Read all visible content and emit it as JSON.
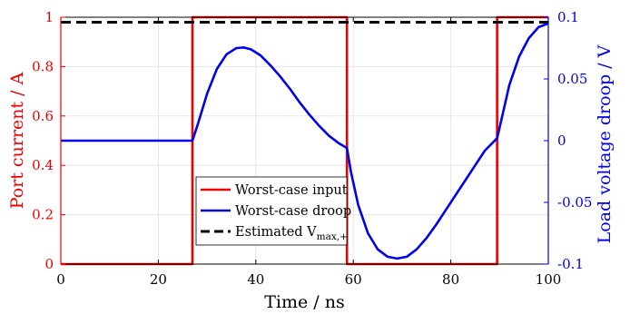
{
  "chart_data": {
    "type": "line",
    "xlabel": "Time / ns",
    "ylabel_left": "Port current / A",
    "ylabel_right": "Load voltage droop / V",
    "xlim": [
      0,
      100
    ],
    "ylim_left": [
      0,
      1
    ],
    "ylim_right": [
      -0.1,
      0.1
    ],
    "x_ticks": [
      0,
      20,
      40,
      60,
      80,
      100
    ],
    "y_left_ticks": [
      0,
      0.2,
      0.4,
      0.6,
      0.8,
      1
    ],
    "y_left_tick_labels": [
      "0",
      "0.2",
      "0.4",
      "0.6",
      "0.8",
      "1"
    ],
    "y_right_ticks": [
      -0.1,
      -0.05,
      0,
      0.05,
      0.1
    ],
    "y_right_tick_labels": [
      "-0.1",
      "-0.05",
      "0",
      "0.05",
      "0.1"
    ],
    "grid": true,
    "legend_position": "bottom-center",
    "colors": {
      "left_axis": "#ee0000",
      "right_axis": "#0000ee"
    },
    "series": [
      {
        "name": "Worst-case input",
        "axis": "left",
        "color": "#ee0000",
        "style": "solid",
        "x": [
          0,
          27,
          27,
          58.7,
          58.7,
          89.5,
          89.5,
          100
        ],
        "y": [
          0,
          0,
          1,
          1,
          0,
          0,
          1,
          1
        ]
      },
      {
        "name": "Worst-case droop",
        "axis": "right",
        "color": "#0000ee",
        "style": "solid",
        "x": [
          0,
          27,
          28,
          30,
          32,
          34,
          36,
          37.5,
          39,
          41,
          43,
          45,
          47,
          49,
          51,
          53,
          55,
          57,
          58.7,
          59.5,
          61,
          63,
          65,
          67,
          69,
          71,
          73,
          75,
          77,
          79,
          81,
          83,
          85,
          87,
          89.5,
          90.5,
          92,
          94,
          96,
          98,
          100
        ],
        "y": [
          0,
          0,
          0.012,
          0.038,
          0.058,
          0.07,
          0.075,
          0.0755,
          0.074,
          0.069,
          0.061,
          0.052,
          0.042,
          0.031,
          0.021,
          0.012,
          0.004,
          -0.002,
          -0.006,
          -0.025,
          -0.052,
          -0.075,
          -0.088,
          -0.094,
          -0.0955,
          -0.094,
          -0.088,
          -0.079,
          -0.068,
          -0.056,
          -0.044,
          -0.032,
          -0.02,
          -0.008,
          0.002,
          0.019,
          0.045,
          0.068,
          0.083,
          0.092,
          0.095
        ]
      },
      {
        "name": "Estimated V",
        "name_sub": "max,+",
        "axis": "right",
        "color": "#000000",
        "style": "dashed",
        "x": [
          0,
          100
        ],
        "y": [
          0.096,
          0.096
        ]
      }
    ]
  }
}
